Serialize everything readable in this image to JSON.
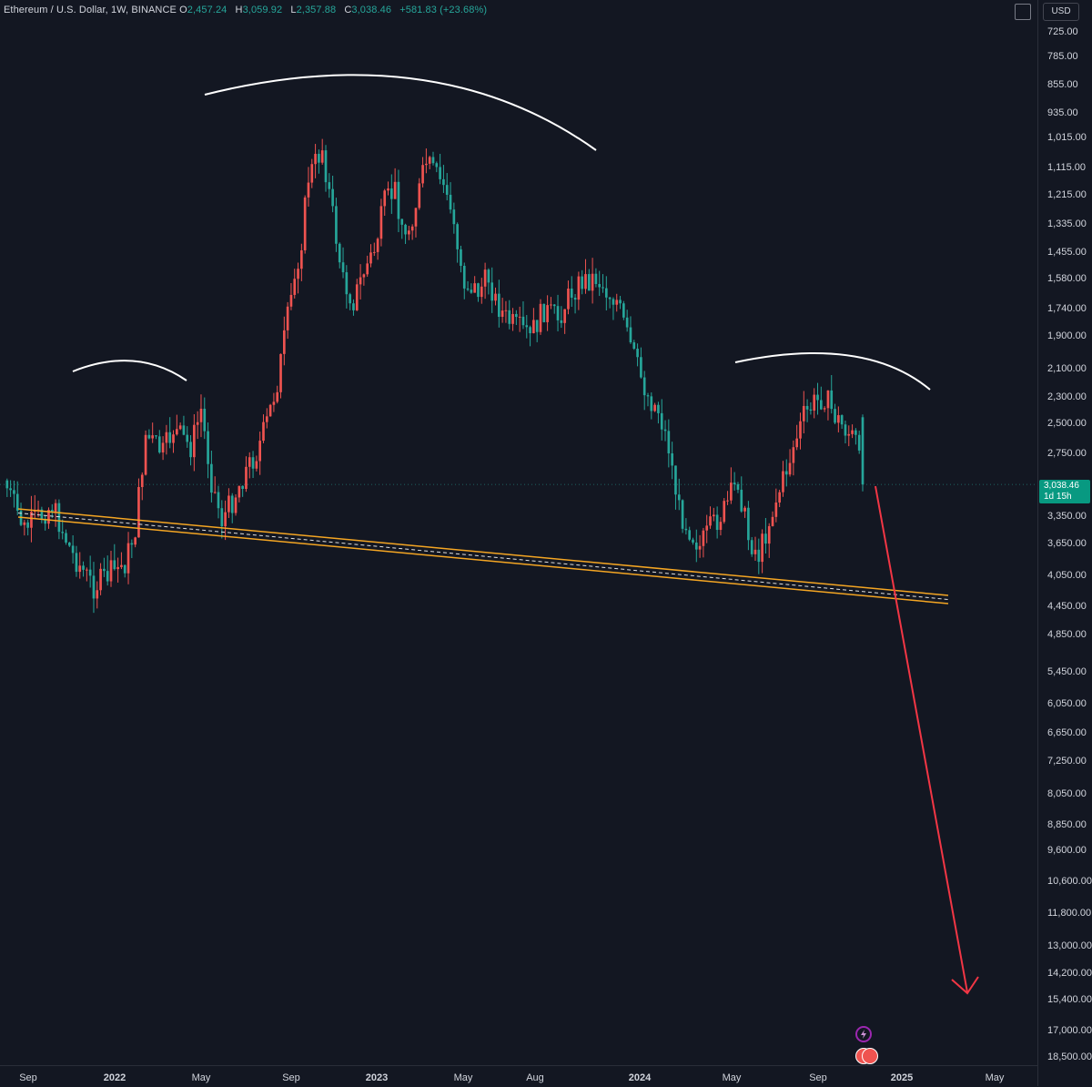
{
  "header": {
    "symbol": "Ethereum / U.S. Dollar, 1W, BINANCE",
    "o_label": "O",
    "o_value": "2,457.24",
    "h_label": "H",
    "h_value": "3,059.92",
    "l_label": "L",
    "l_value": "2,357.88",
    "c_label": "C",
    "c_value": "3,038.46",
    "change": "+581.83 (+23.68%)"
  },
  "currency": "USD",
  "price_tag": {
    "price": "3,038.46",
    "countdown": "1d 15h"
  },
  "colors": {
    "background": "#131722",
    "up_candle": "#26a69a",
    "down_candle": "#ef5350",
    "channel_line": "#f5a623",
    "arrow": "#f23645",
    "arc": "#ffffff"
  },
  "chart_data": {
    "type": "candlestick",
    "scale": "inverted-log",
    "y_ticks": [
      "725.00",
      "785.00",
      "855.00",
      "935.00",
      "1,015.00",
      "1,115.00",
      "1,215.00",
      "1,335.00",
      "1,455.00",
      "1,580.00",
      "1,740.00",
      "1,900.00",
      "2,100.00",
      "2,300.00",
      "2,500.00",
      "2,750.00",
      "3,350.00",
      "3,650.00",
      "4,050.00",
      "4,450.00",
      "4,850.00",
      "5,450.00",
      "6,050.00",
      "6,650.00",
      "7,250.00",
      "8,050.00",
      "8,850.00",
      "9,600.00",
      "10,600.00",
      "11,800.00",
      "13,000.00",
      "14,200.00",
      "15,400.00",
      "17,000.00",
      "18,500.00"
    ],
    "x_ticks": [
      {
        "label": "Sep",
        "bold": false
      },
      {
        "label": "2022",
        "bold": true
      },
      {
        "label": "May",
        "bold": false
      },
      {
        "label": "Sep",
        "bold": false
      },
      {
        "label": "2023",
        "bold": true
      },
      {
        "label": "May",
        "bold": false
      },
      {
        "label": "Aug",
        "bold": false
      },
      {
        "label": "2024",
        "bold": true
      },
      {
        "label": "May",
        "bold": false
      },
      {
        "label": "Sep",
        "bold": false
      },
      {
        "label": "2025",
        "bold": true
      },
      {
        "label": "May",
        "bold": false
      }
    ],
    "last_close": 3038.46,
    "annotations": [
      "head-and-shoulders arcs",
      "neckline channel",
      "projection arrow"
    ]
  }
}
